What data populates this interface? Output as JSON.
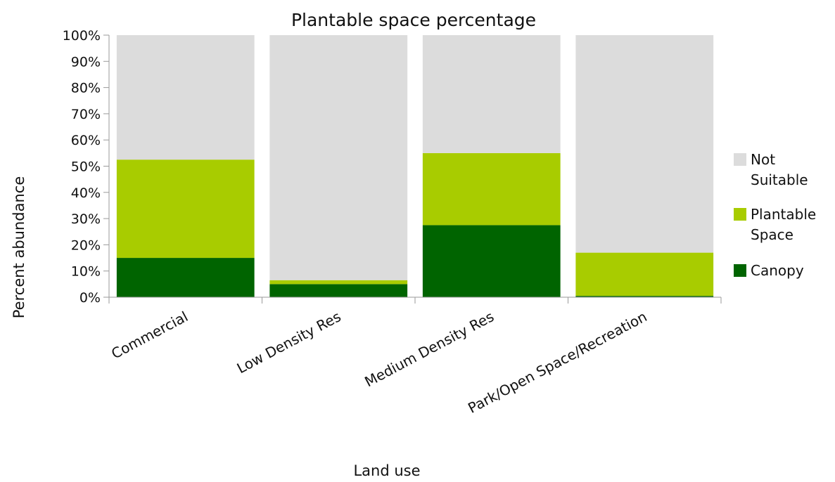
{
  "chart_data": {
    "type": "bar",
    "stacked": true,
    "percent_stacked": true,
    "title": "Plantable space percentage",
    "xlabel": "Land use",
    "ylabel": "Percent abundance",
    "categories": [
      "Commercial",
      "Low Density Res",
      "Medium Density Res",
      "Park/Open Space/Recreation"
    ],
    "series": [
      {
        "name": "Canopy",
        "color": "#006400",
        "values": [
          15,
          5,
          27.5,
          0.5
        ]
      },
      {
        "name": "Plantable Space",
        "color": "#a8cc00",
        "values": [
          37.5,
          1.5,
          27.5,
          16.5
        ]
      },
      {
        "name": "Not Suitable",
        "color": "#dcdcdc",
        "values": [
          47.5,
          93.5,
          45,
          83
        ]
      }
    ],
    "ylim": [
      0,
      100
    ],
    "yticks": [
      0,
      10,
      20,
      30,
      40,
      50,
      60,
      70,
      80,
      90,
      100
    ],
    "ytick_labels": [
      "0%",
      "10%",
      "20%",
      "30%",
      "40%",
      "50%",
      "60%",
      "70%",
      "80%",
      "90%",
      "100%"
    ],
    "grid": false,
    "legend": {
      "position": "right",
      "entries": [
        {
          "lines": [
            "Not",
            "Suitable"
          ],
          "color": "#dcdcdc"
        },
        {
          "lines": [
            "Plantable",
            "Space"
          ],
          "color": "#a8cc00"
        },
        {
          "lines": [
            "Canopy"
          ],
          "color": "#006400"
        }
      ]
    }
  }
}
